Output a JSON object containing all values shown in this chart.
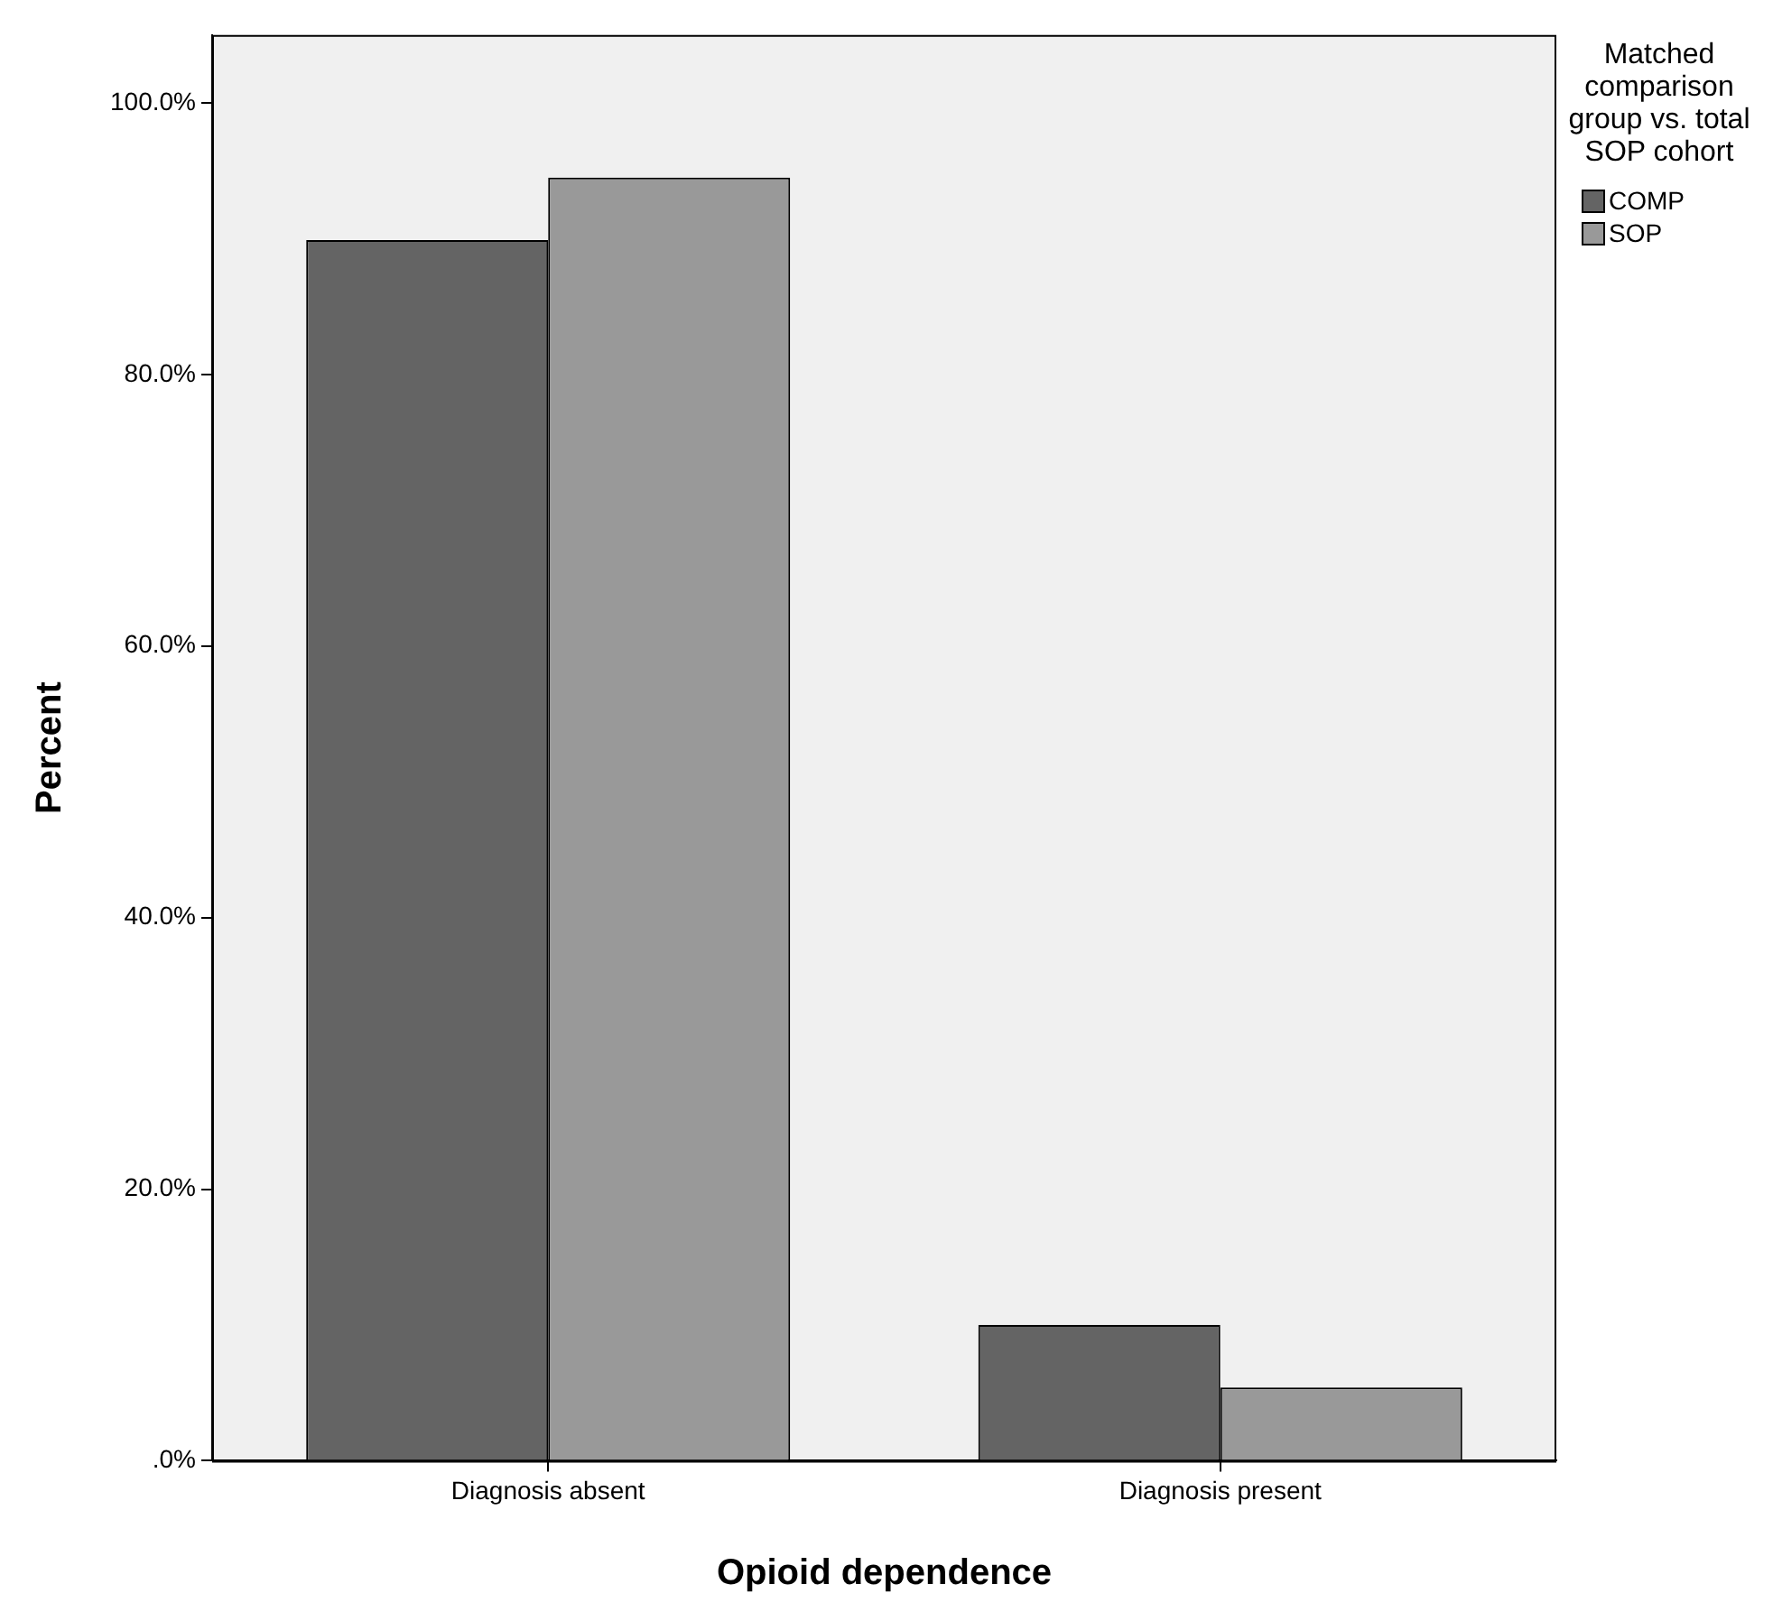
{
  "chart_data": {
    "type": "bar",
    "xlabel": "Opioid dependence",
    "ylabel": "Percent",
    "legend_title": "Matched comparison group vs. total SOP cohort",
    "legend": "top right",
    "grid": false,
    "categories": [
      "Diagnosis absent",
      "Diagnosis present"
    ],
    "series": [
      {
        "name": "COMP",
        "color": "#646464",
        "values": [
          89.9,
          10.0
        ]
      },
      {
        "name": "SOP",
        "color": "#999999",
        "values": [
          94.5,
          5.4
        ]
      }
    ],
    "ylim": [
      0,
      105
    ],
    "yticks": [
      {
        "value": 0,
        "label": ".0%"
      },
      {
        "value": 20,
        "label": "20.0%"
      },
      {
        "value": 40,
        "label": "40.0%"
      },
      {
        "value": 60,
        "label": "60.0%"
      },
      {
        "value": 80,
        "label": "80.0%"
      },
      {
        "value": 100,
        "label": "100.0%"
      }
    ]
  }
}
